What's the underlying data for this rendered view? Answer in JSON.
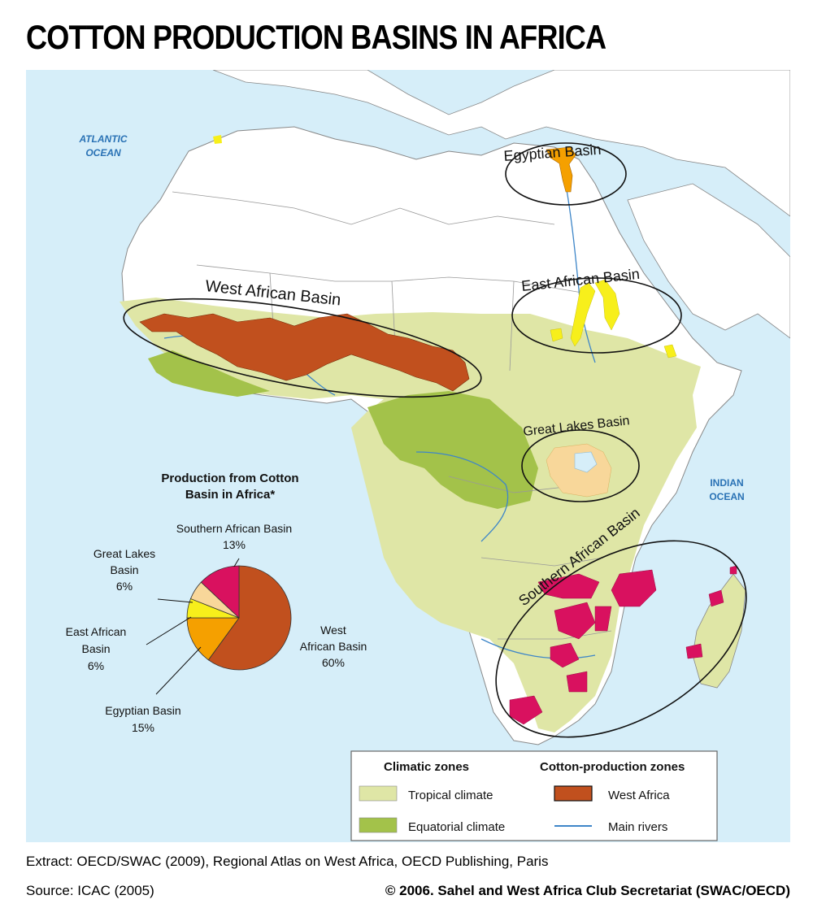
{
  "title": "COTTON PRODUCTION BASINS IN AFRICA",
  "oceans": {
    "atlantic": "ATLANTIC OCEAN",
    "atlantic_line1": "ATLANTIC",
    "atlantic_line2": "OCEAN",
    "indian_line1": "INDIAN",
    "indian_line2": "OCEAN"
  },
  "basins": {
    "west": "West African Basin",
    "egyptian": "Egyptian Basin",
    "east": "East African Basin",
    "great_lakes": "Great Lakes Basin",
    "southern": "Southern African Basin"
  },
  "pie": {
    "title_line1": "Production from Cotton",
    "title_line2": "Basin in Africa*",
    "slices": [
      {
        "label_lines": [
          "West",
          "African Basin",
          "60%"
        ],
        "value": 60,
        "color": "#c1501e"
      },
      {
        "label_lines": [
          "Egyptian Basin",
          "15%"
        ],
        "value": 15,
        "color": "#f5a000"
      },
      {
        "label_lines": [
          "East African",
          "Basin",
          "6%"
        ],
        "value": 6,
        "color": "#f7ef1b"
      },
      {
        "label_lines": [
          "Great Lakes",
          "Basin",
          "6%"
        ],
        "value": 6,
        "color": "#f8d79a"
      },
      {
        "label_lines": [
          "Southern African Basin",
          "13%"
        ],
        "value": 13,
        "color": "#d9115f"
      }
    ]
  },
  "legend": {
    "climatic_header": "Climatic zones",
    "cotton_header": "Cotton-production zones",
    "tropical": "Tropical climate",
    "equatorial": "Equatorial climate",
    "west_africa": "West Africa",
    "rivers": "Main rivers",
    "colors": {
      "tropical": "#dfe6a6",
      "equatorial": "#a3c24a",
      "west_africa": "#c1501e",
      "rivers": "#3e86c8",
      "egypt": "#f5a000",
      "east": "#f7ef1b",
      "great_lakes": "#f8d79a",
      "southern": "#d9115f",
      "sea": "#d6eef9",
      "land": "#ffffff"
    }
  },
  "footer": {
    "extract": "Extract: OECD/SWAC (2009), Regional Atlas on West Africa, OECD Publishing, Paris",
    "source": "Source: ICAC (2005)",
    "copyright": "© 2006. Sahel and West Africa Club Secretariat (SWAC/OECD)"
  }
}
